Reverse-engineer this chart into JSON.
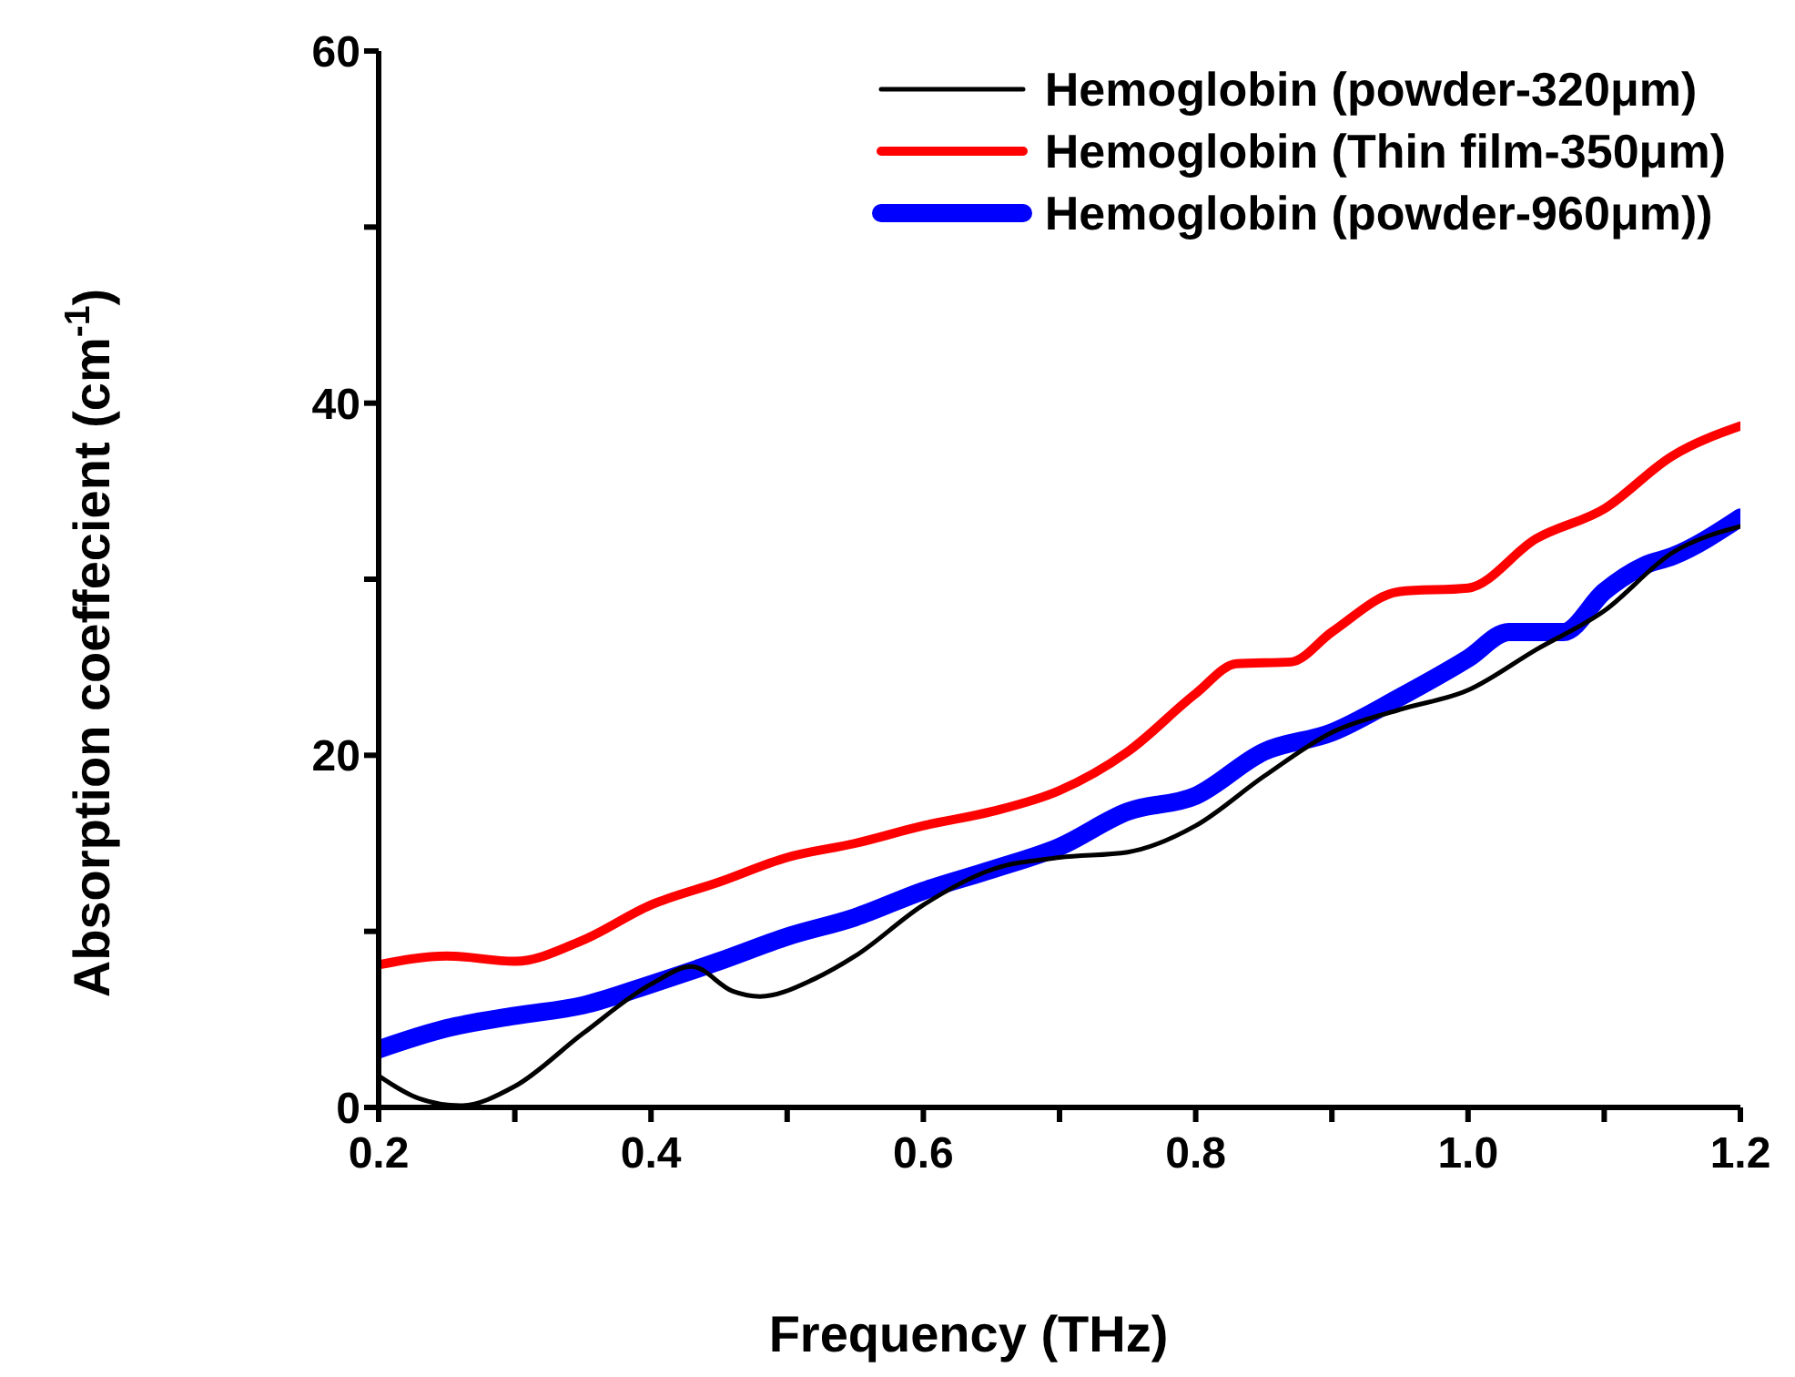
{
  "chart_data": {
    "type": "line",
    "xlabel": "Frequency (THz)",
    "ylabel": "Absorption coeffecient (cm$^{-1}$)",
    "xlim": [
      0.2,
      1.2
    ],
    "ylim": [
      0,
      60
    ],
    "xticks": [
      0.2,
      {
        "value": 0.3,
        "label": null
      },
      0.4,
      {
        "value": 0.5,
        "label": null
      },
      0.6,
      {
        "value": 0.7,
        "label": null
      },
      0.8,
      {
        "value": 0.9,
        "label": null
      },
      {
        "value": 1,
        "label": "1.0"
      },
      {
        "value": 1.1,
        "label": null
      },
      1.2
    ],
    "yticks": [
      0,
      {
        "value": 10,
        "label": null
      },
      20,
      {
        "value": 30,
        "label": null
      },
      40,
      {
        "value": 50,
        "label": null
      },
      60
    ],
    "legend": "top right",
    "grid": false,
    "marker": "none",
    "line_style": "solid",
    "series": [
      {
        "name": "Hemoglobin (powder-320μm)",
        "color": "#000000",
        "x": [
          0.2,
          0.23,
          0.26,
          0.3,
          0.35,
          0.4,
          0.43,
          0.46,
          0.48,
          0.52,
          0.55,
          0.6,
          0.65,
          0.7,
          0.75,
          0.8,
          0.85,
          0.9,
          0.95,
          1.0,
          1.05,
          1.1,
          1.15,
          1.2
        ],
        "values": [
          1.8,
          0.5,
          0.1,
          1.2,
          4.2,
          7.0,
          8.0,
          6.6,
          6.3,
          7.3,
          8.6,
          11.5,
          13.5,
          14.2,
          14.5,
          16.0,
          18.8,
          21.3,
          22.6,
          23.7,
          26.0,
          28.2,
          31.5,
          33.0
        ]
      },
      {
        "name": "Hemoglobin (Thin film-350μm)",
        "color": "#ff0000",
        "x": [
          0.2,
          0.25,
          0.3,
          0.35,
          0.4,
          0.45,
          0.5,
          0.55,
          0.6,
          0.65,
          0.7,
          0.75,
          0.8,
          0.83,
          0.87,
          0.9,
          0.95,
          1.0,
          1.05,
          1.1,
          1.15,
          1.2
        ],
        "values": [
          8.1,
          8.6,
          8.3,
          9.5,
          11.5,
          12.8,
          14.2,
          15.0,
          16.0,
          16.8,
          18.0,
          20.2,
          23.5,
          25.2,
          25.3,
          27.0,
          29.3,
          29.5,
          32.3,
          34.0,
          37.0,
          38.7
        ]
      },
      {
        "name": "Hemoglobin (powder-960μm))",
        "color": "#0000ff",
        "x": [
          0.2,
          0.25,
          0.3,
          0.35,
          0.4,
          0.45,
          0.5,
          0.55,
          0.6,
          0.65,
          0.7,
          0.75,
          0.8,
          0.85,
          0.9,
          0.95,
          1.0,
          1.03,
          1.07,
          1.1,
          1.13,
          1.15,
          1.2
        ],
        "values": [
          3.3,
          4.5,
          5.2,
          5.8,
          7.0,
          8.3,
          9.7,
          10.8,
          12.3,
          13.5,
          14.8,
          16.8,
          17.7,
          20.2,
          21.3,
          23.3,
          25.5,
          27.0,
          27.0,
          29.3,
          30.8,
          31.3,
          33.5
        ]
      }
    ]
  }
}
